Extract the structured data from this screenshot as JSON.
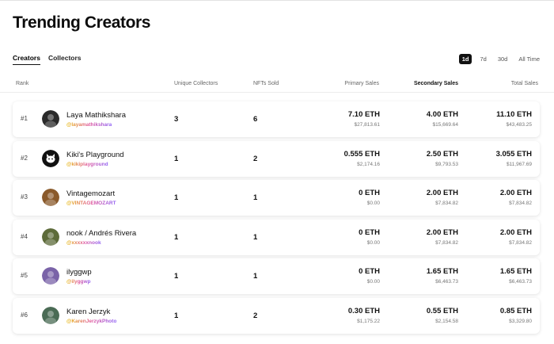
{
  "page": {
    "title": "Trending Creators"
  },
  "tabs": [
    {
      "label": "Creators",
      "active": true
    },
    {
      "label": "Collectors",
      "active": false
    }
  ],
  "ranges": [
    {
      "label": "1d",
      "active": true
    },
    {
      "label": "7d",
      "active": false
    },
    {
      "label": "30d",
      "active": false
    },
    {
      "label": "All Time",
      "active": false
    }
  ],
  "columns": {
    "rank": "Rank",
    "unique_collectors": "Unique Collectors",
    "nfts_sold": "NFTs Sold",
    "primary_sales": "Primary Sales",
    "secondary_sales": "Secondary Sales",
    "total_sales": "Total Sales"
  },
  "rows": [
    {
      "rank": "#1",
      "name": "Laya Mathikshara",
      "handle": "@layamathikshara",
      "avatar_icon": "portrait-photo-avatar",
      "avatar_color": "#2a2a2a",
      "unique_collectors": "3",
      "nfts_sold": "6",
      "primary_eth": "7.10 ETH",
      "primary_usd": "$27,813.61",
      "secondary_eth": "4.00 ETH",
      "secondary_usd": "$15,669.64",
      "total_eth": "11.10 ETH",
      "total_usd": "$43,483.25"
    },
    {
      "rank": "#2",
      "name": "Kiki's Playground",
      "handle": "@kikiplayground",
      "avatar_icon": "cat-avatar",
      "avatar_color": "#111111",
      "unique_collectors": "1",
      "nfts_sold": "2",
      "primary_eth": "0.555 ETH",
      "primary_usd": "$2,174.16",
      "secondary_eth": "2.50 ETH",
      "secondary_usd": "$9,793.53",
      "total_eth": "3.055 ETH",
      "total_usd": "$11,967.69"
    },
    {
      "rank": "#3",
      "name": "Vintagemozart",
      "handle": "@VINTAGEMOZART",
      "avatar_icon": "artwork-avatar",
      "avatar_color": "#8a5a2b",
      "unique_collectors": "1",
      "nfts_sold": "1",
      "primary_eth": "0 ETH",
      "primary_usd": "$0.00",
      "secondary_eth": "2.00 ETH",
      "secondary_usd": "$7,834.82",
      "total_eth": "2.00 ETH",
      "total_usd": "$7,834.82"
    },
    {
      "rank": "#4",
      "name": "nook / Andrés Rivera",
      "handle": "@xxxxxxnook",
      "avatar_icon": "artwork-avatar",
      "avatar_color": "#5d6b3a",
      "unique_collectors": "1",
      "nfts_sold": "1",
      "primary_eth": "0 ETH",
      "primary_usd": "$0.00",
      "secondary_eth": "2.00 ETH",
      "secondary_usd": "$7,834.82",
      "total_eth": "2.00 ETH",
      "total_usd": "$7,834.82"
    },
    {
      "rank": "#5",
      "name": "ilyggwp",
      "handle": "@ilyggwp",
      "avatar_icon": "artwork-avatar",
      "avatar_color": "#7a63a8",
      "unique_collectors": "1",
      "nfts_sold": "1",
      "primary_eth": "0 ETH",
      "primary_usd": "$0.00",
      "secondary_eth": "1.65 ETH",
      "secondary_usd": "$6,463.73",
      "total_eth": "1.65 ETH",
      "total_usd": "$6,463.73"
    },
    {
      "rank": "#6",
      "name": "Karen Jerzyk",
      "handle": "@KarenJerzykPhoto",
      "avatar_icon": "photo-avatar",
      "avatar_color": "#4a6b55",
      "unique_collectors": "1",
      "nfts_sold": "2",
      "primary_eth": "0.30 ETH",
      "primary_usd": "$1,175.22",
      "secondary_eth": "0.55 ETH",
      "secondary_usd": "$2,154.58",
      "total_eth": "0.85 ETH",
      "total_usd": "$3,329.80"
    }
  ]
}
